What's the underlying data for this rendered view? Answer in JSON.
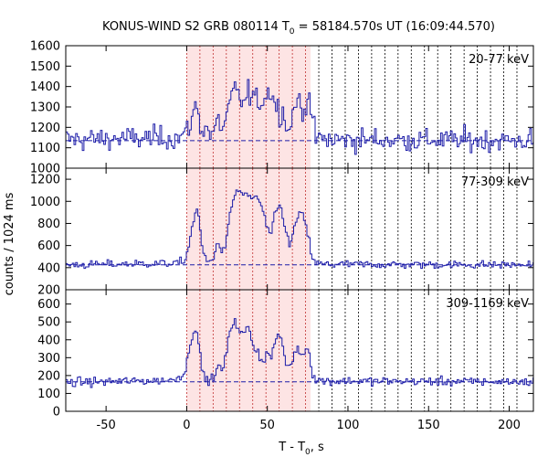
{
  "chart_data": {
    "type": "line",
    "title_prefix": "KONUS-WIND S2 GRB 080114 T",
    "title_sub": "0",
    "title_suffix": " = 58184.570s UT (16:09:44.570)",
    "xlabel_prefix": "T - T",
    "xlabel_sub": "0",
    "xlabel_suffix": ", s",
    "ylabel": "counts / 1024 ms",
    "xlim": [
      -75,
      215
    ],
    "x_ticks": [
      -50,
      0,
      50,
      100,
      150,
      200
    ],
    "bin_width_s": 1.024,
    "highlight_interval": [
      0,
      76.8
    ],
    "highlight_color": "#fde4e4",
    "boundary_color_inside": "#c03030",
    "boundary_color_outside": "#000000",
    "boundaries": [
      0,
      8.192,
      16.384,
      24.576,
      32.768,
      40.96,
      49.152,
      57.344,
      65.536,
      73.728,
      81.92,
      90.112,
      98.304,
      106.496,
      114.688,
      122.88,
      131.072,
      139.264,
      147.456,
      155.648,
      163.84,
      172.032,
      180.224,
      188.416,
      196.608,
      204.8
    ],
    "series_color": "#1c1ca8",
    "panels": [
      {
        "band": "20-77 keV",
        "ylim": [
          1000,
          1600
        ],
        "y_ticks": [
          1000,
          1100,
          1200,
          1300,
          1400,
          1500,
          1600
        ],
        "background": 1135,
        "noise": 28,
        "profile": [
          [
            -75,
            1140
          ],
          [
            -5,
            1150
          ],
          [
            0,
            1175
          ],
          [
            2,
            1210
          ],
          [
            4,
            1270
          ],
          [
            6,
            1320
          ],
          [
            8,
            1220
          ],
          [
            10,
            1180
          ],
          [
            12,
            1215
          ],
          [
            14,
            1170
          ],
          [
            16,
            1160
          ],
          [
            18,
            1200
          ],
          [
            20,
            1240
          ],
          [
            22,
            1185
          ],
          [
            24,
            1230
          ],
          [
            26,
            1290
          ],
          [
            28,
            1350
          ],
          [
            30,
            1385
          ],
          [
            32,
            1360
          ],
          [
            34,
            1335
          ],
          [
            36,
            1310
          ],
          [
            38,
            1380
          ],
          [
            40,
            1340
          ],
          [
            42,
            1360
          ],
          [
            44,
            1300
          ],
          [
            46,
            1330
          ],
          [
            48,
            1350
          ],
          [
            50,
            1360
          ],
          [
            52,
            1390
          ],
          [
            54,
            1330
          ],
          [
            56,
            1300
          ],
          [
            58,
            1260
          ],
          [
            60,
            1300
          ],
          [
            62,
            1200
          ],
          [
            64,
            1170
          ],
          [
            66,
            1290
          ],
          [
            68,
            1340
          ],
          [
            70,
            1320
          ],
          [
            72,
            1240
          ],
          [
            74,
            1320
          ],
          [
            76,
            1400
          ],
          [
            78,
            1210
          ],
          [
            80,
            1150
          ],
          [
            84,
            1140
          ],
          [
            215,
            1135
          ]
        ]
      },
      {
        "band": "77-309 keV",
        "ylim": [
          200,
          1300
        ],
        "y_ticks": [
          200,
          400,
          600,
          800,
          1000,
          1200
        ],
        "background": 425,
        "noise": 18,
        "profile": [
          [
            -75,
            425
          ],
          [
            -5,
            440
          ],
          [
            -1,
            470
          ],
          [
            0,
            520
          ],
          [
            2,
            650
          ],
          [
            4,
            820
          ],
          [
            6,
            900
          ],
          [
            7,
            940
          ],
          [
            8,
            780
          ],
          [
            10,
            540
          ],
          [
            12,
            470
          ],
          [
            14,
            445
          ],
          [
            16,
            480
          ],
          [
            18,
            560
          ],
          [
            20,
            650
          ],
          [
            22,
            520
          ],
          [
            24,
            600
          ],
          [
            26,
            800
          ],
          [
            28,
            950
          ],
          [
            30,
            1070
          ],
          [
            32,
            1100
          ],
          [
            34,
            1080
          ],
          [
            36,
            1060
          ],
          [
            38,
            1050
          ],
          [
            40,
            1010
          ],
          [
            42,
            1060
          ],
          [
            44,
            1020
          ],
          [
            46,
            970
          ],
          [
            48,
            870
          ],
          [
            50,
            760
          ],
          [
            52,
            640
          ],
          [
            54,
            860
          ],
          [
            56,
            940
          ],
          [
            58,
            960
          ],
          [
            60,
            860
          ],
          [
            62,
            690
          ],
          [
            64,
            580
          ],
          [
            66,
            720
          ],
          [
            68,
            820
          ],
          [
            70,
            900
          ],
          [
            72,
            870
          ],
          [
            74,
            760
          ],
          [
            76,
            640
          ],
          [
            78,
            480
          ],
          [
            80,
            440
          ],
          [
            84,
            430
          ],
          [
            215,
            425
          ]
        ]
      },
      {
        "band": "309-1169 keV",
        "ylim": [
          0,
          680
        ],
        "y_ticks": [
          0,
          100,
          200,
          300,
          400,
          500,
          600
        ],
        "background": 165,
        "noise": 12,
        "profile": [
          [
            -75,
            160
          ],
          [
            -8,
            175
          ],
          [
            -4,
            200
          ],
          [
            -1,
            220
          ],
          [
            0,
            270
          ],
          [
            2,
            360
          ],
          [
            4,
            450
          ],
          [
            6,
            480
          ],
          [
            8,
            330
          ],
          [
            10,
            210
          ],
          [
            12,
            180
          ],
          [
            14,
            165
          ],
          [
            16,
            190
          ],
          [
            18,
            210
          ],
          [
            20,
            260
          ],
          [
            22,
            220
          ],
          [
            24,
            300
          ],
          [
            26,
            400
          ],
          [
            28,
            480
          ],
          [
            30,
            520
          ],
          [
            32,
            460
          ],
          [
            34,
            430
          ],
          [
            36,
            440
          ],
          [
            38,
            480
          ],
          [
            40,
            410
          ],
          [
            42,
            360
          ],
          [
            44,
            330
          ],
          [
            46,
            300
          ],
          [
            48,
            280
          ],
          [
            50,
            330
          ],
          [
            52,
            300
          ],
          [
            54,
            360
          ],
          [
            56,
            410
          ],
          [
            58,
            430
          ],
          [
            60,
            340
          ],
          [
            62,
            250
          ],
          [
            64,
            260
          ],
          [
            66,
            290
          ],
          [
            68,
            350
          ],
          [
            70,
            340
          ],
          [
            72,
            310
          ],
          [
            74,
            360
          ],
          [
            76,
            330
          ],
          [
            78,
            210
          ],
          [
            80,
            180
          ],
          [
            84,
            170
          ],
          [
            215,
            165
          ]
        ]
      }
    ]
  }
}
